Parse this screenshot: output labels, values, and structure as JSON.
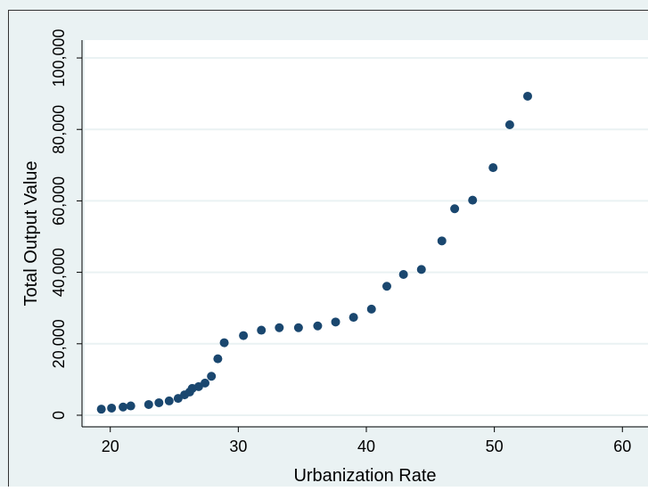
{
  "chart_data": {
    "type": "scatter",
    "title": "",
    "xlabel": "Urbanization Rate",
    "ylabel": "Total Output Value",
    "xlim": [
      18,
      62
    ],
    "ylim": [
      -3000,
      105000
    ],
    "x_ticks": [
      20,
      30,
      40,
      50,
      60
    ],
    "x_tick_labels": [
      "20",
      "30",
      "40",
      "50",
      "60"
    ],
    "y_ticks": [
      0,
      20000,
      40000,
      60000,
      80000,
      100000
    ],
    "y_tick_labels": [
      "0",
      "20,000",
      "40,000",
      "60,000",
      "80,000",
      "100,000"
    ],
    "grid": "horizontal",
    "legend": "none",
    "colors": {
      "outer_background": "#eaf2f3",
      "plot_background": "#ffffff",
      "grid": "#eaf2f3",
      "marker": "#1a476f",
      "axis": "#000000",
      "text": "#000000"
    },
    "points": [
      {
        "x": 19.3,
        "y": 1700
      },
      {
        "x": 20.1,
        "y": 2000
      },
      {
        "x": 21.0,
        "y": 2300
      },
      {
        "x": 21.6,
        "y": 2600
      },
      {
        "x": 23.0,
        "y": 3000
      },
      {
        "x": 23.8,
        "y": 3500
      },
      {
        "x": 24.6,
        "y": 4000
      },
      {
        "x": 25.3,
        "y": 4700
      },
      {
        "x": 25.8,
        "y": 5700
      },
      {
        "x": 26.2,
        "y": 6500
      },
      {
        "x": 26.4,
        "y": 7500
      },
      {
        "x": 26.9,
        "y": 8000
      },
      {
        "x": 27.4,
        "y": 9000
      },
      {
        "x": 27.9,
        "y": 10900
      },
      {
        "x": 28.4,
        "y": 15800
      },
      {
        "x": 28.9,
        "y": 20300
      },
      {
        "x": 30.4,
        "y": 22300
      },
      {
        "x": 31.8,
        "y": 23800
      },
      {
        "x": 33.2,
        "y": 24500
      },
      {
        "x": 34.7,
        "y": 24500
      },
      {
        "x": 36.2,
        "y": 25000
      },
      {
        "x": 37.6,
        "y": 26100
      },
      {
        "x": 39.0,
        "y": 27400
      },
      {
        "x": 40.4,
        "y": 29700
      },
      {
        "x": 41.6,
        "y": 36100
      },
      {
        "x": 42.9,
        "y": 39400
      },
      {
        "x": 44.3,
        "y": 40800
      },
      {
        "x": 45.9,
        "y": 48800
      },
      {
        "x": 46.9,
        "y": 57800
      },
      {
        "x": 48.3,
        "y": 60200
      },
      {
        "x": 49.9,
        "y": 69300
      },
      {
        "x": 51.2,
        "y": 81300
      },
      {
        "x": 52.6,
        "y": 89300
      }
    ]
  }
}
